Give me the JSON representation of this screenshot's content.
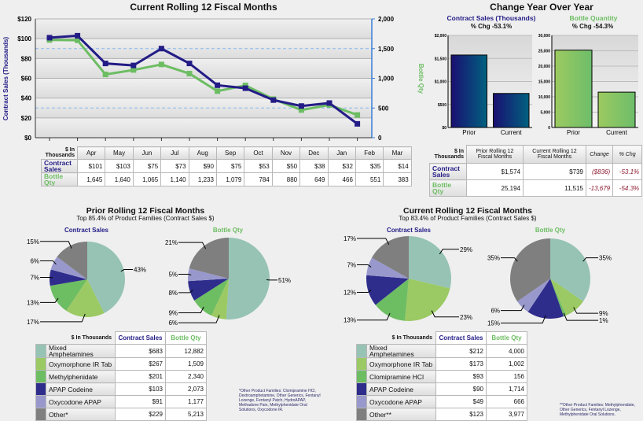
{
  "colors": {
    "navy": "#231c86",
    "green": "#6dbd63",
    "teal": "#96c3b4",
    "light_green": "#9bc963",
    "product_green": "#6dbd63",
    "product_navy": "#2e2d8c",
    "lavender": "#9898cc",
    "gray": "#7f7f7f"
  },
  "trend": {
    "title": "Current Rolling 12 Fiscal Months",
    "corner": "$ In Thousands",
    "row_sales": "Contract Sales",
    "row_bottle": "Bottle Qty",
    "months": [
      "Apr",
      "May",
      "Jun",
      "Jul",
      "Aug",
      "Sep",
      "Oct",
      "Nov",
      "Dec",
      "Jan",
      "Feb",
      "Mar"
    ],
    "sales_text": [
      "$101",
      "$103",
      "$75",
      "$73",
      "$90",
      "$75",
      "$53",
      "$50",
      "$38",
      "$32",
      "$35",
      "$14"
    ],
    "bottle_text": [
      "1,645",
      "1,640",
      "1,065",
      "1,140",
      "1,233",
      "1,079",
      "784",
      "880",
      "649",
      "466",
      "551",
      "383"
    ]
  },
  "yoy": {
    "title": "Change Year Over Year",
    "sales_title": "Contract Sales (Thousands)",
    "sales_chg": "% Chg -53.1%",
    "bottle_title": "Bottle Quantity",
    "bottle_chg": "% Chg -54.3%",
    "table": {
      "corner": "$ In Thousands",
      "headers": [
        "Prior Rolling 12 Fiscal Months",
        "Current Rolling 12 Fiscal Months",
        "Change",
        "% Chg"
      ],
      "rows": [
        {
          "label": "Contract Sales",
          "values": [
            "$1,574",
            "$739",
            "($836)",
            "-53.1%"
          ]
        },
        {
          "label": "Bottle Qty",
          "values": [
            "25,194",
            "11,515",
            "-13,679",
            "-54.3%"
          ]
        }
      ]
    }
  },
  "prior": {
    "title": "Prior Rolling 12 Fiscal Months",
    "subtitle": "Top 85.4% of Product Families (Contract Sales $)",
    "pie_sales_title": "Contract Sales",
    "pie_bottle_title": "Bottle Qty",
    "table": {
      "corner": "$ In Thousands",
      "h_sales": "Contract Sales",
      "h_bottle": "Bottle Qty",
      "rows": [
        {
          "name": "Mixed Amphetamines",
          "sales": "$683",
          "bottle": "12,882"
        },
        {
          "name": "Oxymorphone IR Tab",
          "sales": "$267",
          "bottle": "1,509"
        },
        {
          "name": "Methylphenidate",
          "sales": "$201",
          "bottle": "2,340"
        },
        {
          "name": "APAP Codeine",
          "sales": "$103",
          "bottle": "2,073"
        },
        {
          "name": "Oxycodone APAP",
          "sales": "$91",
          "bottle": "1,177"
        },
        {
          "name": "Other*",
          "sales": "$229",
          "bottle": "5,213"
        }
      ]
    },
    "note": "*Other Product Families: Clomipramine HCl, Dextroamphetamine, Other Generics, Fentanyl Lozenge, Fentanyl Patch, HydroAPAP, Methadone Pain, Methylphenidate Oral Solutions, Oxycodone IR."
  },
  "current": {
    "title": "Current Rolling 12 Fiscal Months",
    "subtitle": "Top 83.4% of Product Families (Contract Sales $)",
    "pie_sales_title": "Contract Sales",
    "pie_bottle_title": "Bottle Qty",
    "table": {
      "corner": "$ In Thousands",
      "h_sales": "Contract Sales",
      "h_bottle": "Bottle Qty",
      "rows": [
        {
          "name": "Mixed Amphetamines",
          "sales": "$212",
          "bottle": "4,000"
        },
        {
          "name": "Oxymorphone IR Tab",
          "sales": "$173",
          "bottle": "1,002"
        },
        {
          "name": "Clomipramine HCl",
          "sales": "$93",
          "bottle": "156"
        },
        {
          "name": "APAP Codeine",
          "sales": "$90",
          "bottle": "1,714"
        },
        {
          "name": "Oxycodone APAP",
          "sales": "$49",
          "bottle": "666"
        },
        {
          "name": "Other**",
          "sales": "$123",
          "bottle": "3,977"
        }
      ]
    },
    "note": "**Other Product Families: Methylphenidate, Other Generics, Fentanyl Lozenge, Methylphenidate Oral Solutions."
  },
  "chart_data": [
    {
      "type": "line",
      "title": "Current Rolling 12 Fiscal Months",
      "ylabel": "Contract Sales (Thousands)",
      "y2label": "Bottle Qty",
      "ylim": [
        0,
        120
      ],
      "y2lim": [
        0,
        2000
      ],
      "yticks": [
        "$0",
        "$20",
        "$40",
        "$60",
        "$80",
        "$100",
        "$120"
      ],
      "y2ticks": [
        "0",
        "500",
        "1,000",
        "1,500",
        "2,000"
      ],
      "categories": [
        "Apr",
        "May",
        "Jun",
        "Jul",
        "Aug",
        "Sep",
        "Oct",
        "Nov",
        "Dec",
        "Jan",
        "Feb",
        "Mar"
      ],
      "series": [
        {
          "name": "Contract Sales",
          "axis": "left",
          "color": "#231c86",
          "values": [
            101,
            103,
            75,
            73,
            90,
            75,
            53,
            50,
            38,
            32,
            35,
            14
          ]
        },
        {
          "name": "Bottle Qty",
          "axis": "right",
          "color": "#6dbd63",
          "values": [
            1645,
            1640,
            1065,
            1140,
            1233,
            1079,
            784,
            880,
            649,
            466,
            551,
            383
          ]
        }
      ]
    },
    {
      "type": "bar",
      "title": "Contract Sales (Thousands)",
      "categories": [
        "Prior",
        "Current"
      ],
      "values": [
        1574,
        739
      ],
      "ylim": [
        0,
        2000
      ],
      "yticks": [
        "$0",
        "$500",
        "$1,000",
        "$1,500",
        "$2,000"
      ]
    },
    {
      "type": "bar",
      "title": "Bottle Quantity",
      "categories": [
        "Prior",
        "Current"
      ],
      "values": [
        25194,
        11515
      ],
      "ylim": [
        0,
        30000
      ],
      "yticks": [
        "0",
        "5,000",
        "10,000",
        "15,000",
        "20,000",
        "25,000",
        "30,000"
      ]
    },
    {
      "type": "pie",
      "title": "Contract Sales",
      "values": [
        43,
        17,
        13,
        7,
        6,
        15
      ]
    },
    {
      "type": "pie",
      "title": "Bottle Qty",
      "values": [
        51,
        6,
        9,
        8,
        5,
        21
      ]
    },
    {
      "type": "pie",
      "title": "Contract Sales",
      "values": [
        29,
        23,
        13,
        12,
        7,
        17
      ]
    },
    {
      "type": "pie",
      "title": "Bottle Qty",
      "values": [
        35,
        9,
        1,
        15,
        6,
        35
      ]
    }
  ]
}
